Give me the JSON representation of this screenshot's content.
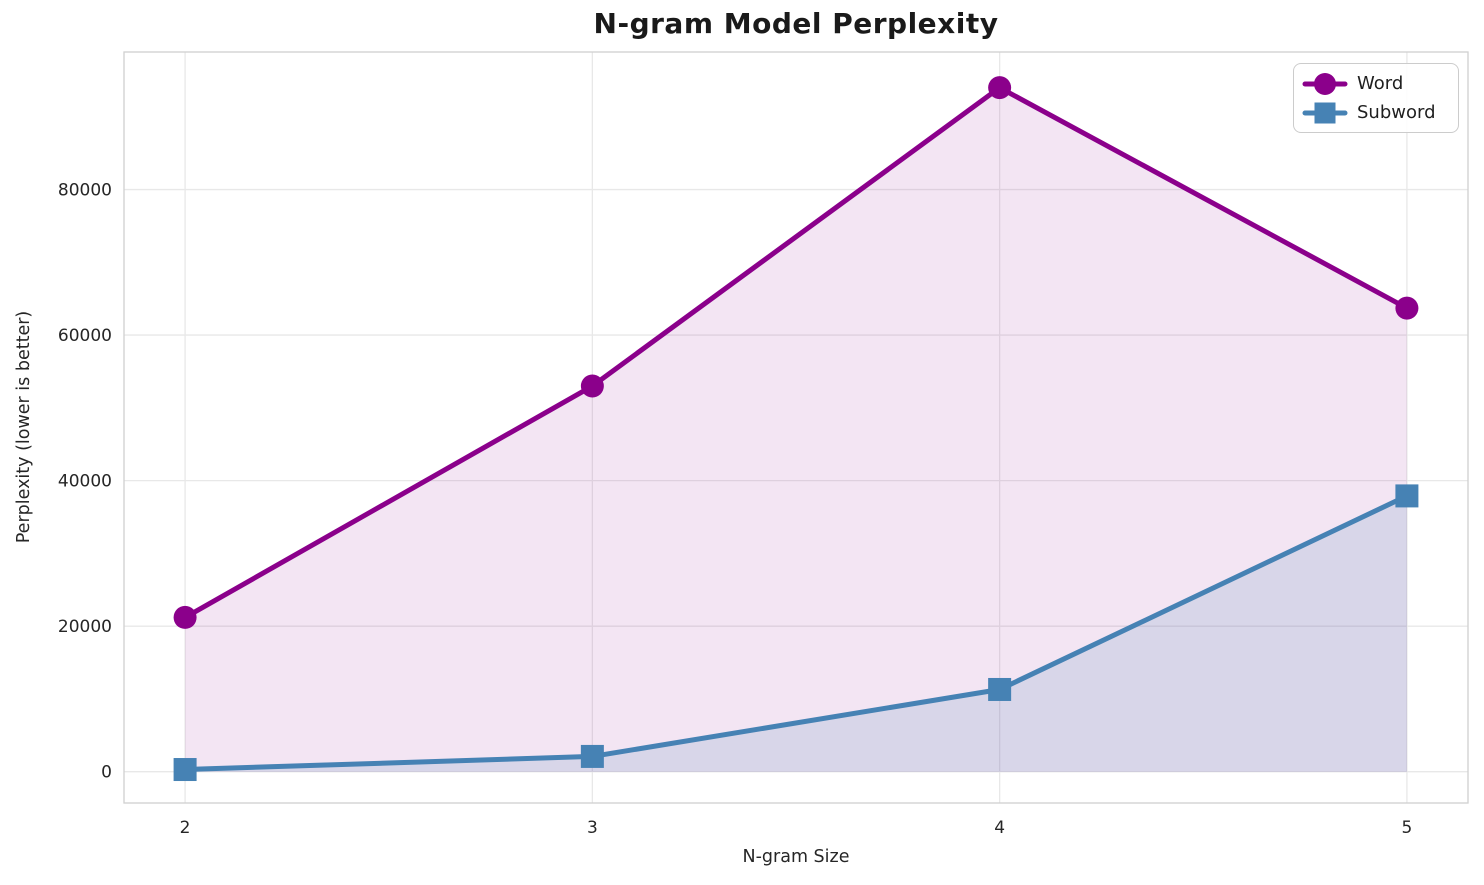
{
  "chart_data": {
    "type": "line",
    "title": "N-gram Model Perplexity",
    "xlabel": "N-gram Size",
    "ylabel": "Perplexity (lower is better)",
    "x": [
      2,
      3,
      4,
      5
    ],
    "series": [
      {
        "name": "Word",
        "values": [
          21200,
          53000,
          94000,
          63700
        ],
        "color": "#8B008B",
        "marker": "circle",
        "fill_alpha": 0.1
      },
      {
        "name": "Subword",
        "values": [
          300,
          2100,
          11300,
          37900
        ],
        "color": "#4682B4",
        "marker": "square",
        "fill_alpha": 0.15
      }
    ],
    "fill_to": 0,
    "xticks": [
      2,
      3,
      4,
      5
    ],
    "yticks": [
      0,
      20000,
      40000,
      60000,
      80000
    ],
    "xlim": [
      1.85,
      5.15
    ],
    "ylim": [
      -4300,
      98900
    ],
    "grid": true,
    "legend_position": "upper right",
    "style": {
      "grid_color": "#e8e8e8",
      "spine_color": "#d0d0d0",
      "text_color": "#262626",
      "line_width": 5,
      "marker_size": 23
    }
  },
  "legend": {
    "items": [
      {
        "label": "Word"
      },
      {
        "label": "Subword"
      }
    ]
  }
}
